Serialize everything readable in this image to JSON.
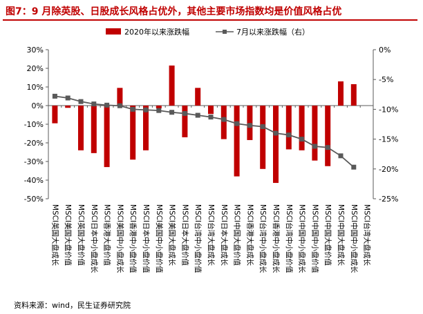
{
  "title": "图7：9 月除英股、日股成长风格占优外，其他主要市场指数均是价值风格占优",
  "source": "资料来源：wind，民生证券研究院",
  "colors": {
    "title": "#c00000",
    "bar": "#c00000",
    "line": "#595959",
    "axis": "#595959"
  },
  "chart_data": {
    "type": "bar",
    "categories": [
      "MSCI英国大盘成长",
      "MSCI美国大盘价值",
      "MSCI英国大盘价值",
      "MSCI日本中小盘成长",
      "MSCI香港大盘价值",
      "MSCI美国中小盘成长",
      "MSCI香港中小盘价值",
      "MSCI日本中小盘价值",
      "MSCI美国中小盘价值",
      "MSCI美国大盘成长",
      "MSCI日本大盘价值",
      "MSCI台湾中小盘价值",
      "MSCI台湾大盘成长",
      "MSCI日本大盘成长",
      "MSCI中国大盘价值",
      "MSCI香港大盘成长",
      "MSCI台湾中小盘成长",
      "MSCI香港中小盘成长",
      "MSCI台湾中小盘价值",
      "MSCI中国中小盘成长",
      "MSCI中国中小盘价值",
      "MSCI中国大盘价值",
      "MSCI中国大盘成长",
      "MSCI中国中小盘成长",
      "MSCI台湾大盘成长"
    ],
    "series": [
      {
        "name": "2020年以来涨跌幅",
        "axis": "left",
        "values": [
          -9.5,
          -1.2,
          -24,
          -25.5,
          -33,
          9.5,
          -29,
          -24,
          -1.5,
          21.5,
          -17,
          9.5,
          -4.5,
          -18,
          -38,
          -18.5,
          -34,
          -41.5,
          -23.5,
          -24,
          -29.5,
          -32.5,
          13,
          11.5,
          0
        ]
      },
      {
        "name": "7月以来涨跌幅（右）",
        "axis": "right",
        "values": [
          -7.8,
          -8.1,
          -8.7,
          -9.1,
          -9.3,
          -9.4,
          -10.0,
          -10.1,
          -10.2,
          -10.5,
          -10.7,
          -11.0,
          -11.3,
          -11.7,
          -12.4,
          -12.7,
          -12.9,
          -14.0,
          -14.3,
          -15.0,
          -16.2,
          -16.4,
          -17.8,
          -19.7,
          null
        ]
      }
    ],
    "ylim_left": [
      -50,
      30
    ],
    "ylim_right": [
      -25,
      0
    ],
    "yticks_left": [
      30,
      20,
      10,
      0,
      -10,
      -20,
      -30,
      -40,
      -50
    ],
    "yticks_right": [
      0,
      -5,
      -10,
      -15,
      -20,
      -25
    ],
    "ytick_labels_left": [
      "30%",
      "20%",
      "10%",
      "0%",
      "-10%",
      "-20%",
      "-30%",
      "-40%",
      "-50%"
    ],
    "ytick_labels_right": [
      "0%",
      "-5%",
      "-10%",
      "-15%",
      "-20%",
      "-25%"
    ],
    "legend_position": "top-center",
    "grid": false
  }
}
